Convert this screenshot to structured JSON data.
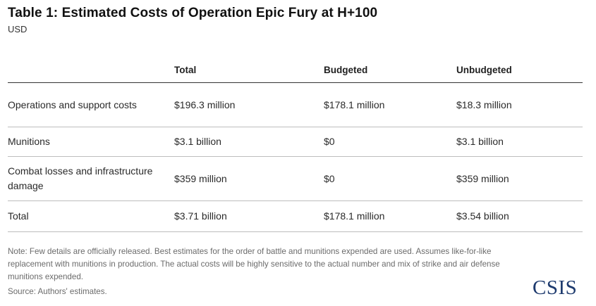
{
  "header": {
    "title": "Table 1: Estimated Costs of Operation Epic Fury at H+100",
    "subtitle": "USD"
  },
  "table": {
    "columns": [
      "",
      "Total",
      "Budgeted",
      "Unbudgeted"
    ],
    "rows": [
      {
        "label": "Operations and support costs",
        "total": "$196.3 million",
        "budgeted": "$178.1 million",
        "unbudgeted": "$18.3 million"
      },
      {
        "label": "Munitions",
        "total": "$3.1 billion",
        "budgeted": "$0",
        "unbudgeted": "$3.1 billion"
      },
      {
        "label": "Combat losses and infrastructure damage",
        "total": "$359 million",
        "budgeted": "$0",
        "unbudgeted": "$359 million"
      },
      {
        "label": "Total",
        "total": "$3.71 billion",
        "budgeted": "$178.1 million",
        "unbudgeted": "$3.54 billion"
      }
    ]
  },
  "footer": {
    "note": "Note: Few details are officially released. Best estimates for the order of battle and munitions expended are used. Assumes like-for-like replacement with munitions in production. The actual costs will be highly sensitive to the actual number and mix of strike and air defense munitions expended.",
    "source": "Source: Authors' estimates.",
    "logo_text": "CSIS"
  },
  "colors": {
    "logo": "#1d3a6e",
    "text": "#1f1f1f",
    "muted": "#6b6b6b",
    "rule": "#bdbdbd"
  }
}
